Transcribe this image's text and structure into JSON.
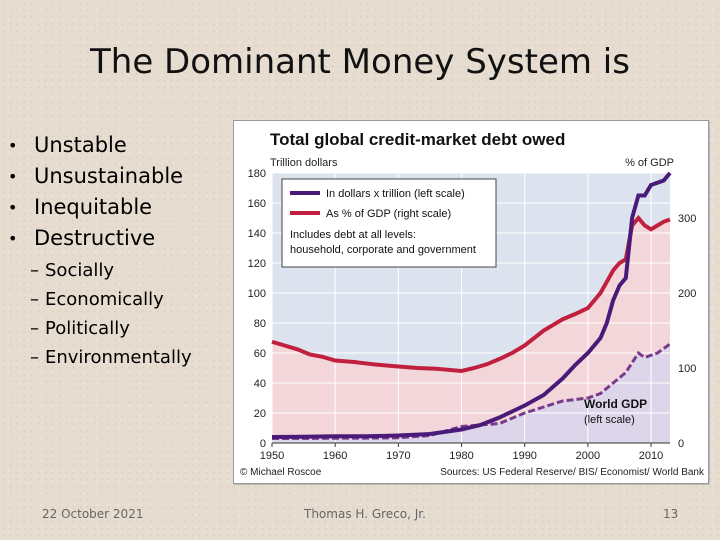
{
  "slide": {
    "title": "The Dominant Money System is",
    "bullets": [
      "Unstable",
      "Unsustainable",
      "Inequitable",
      "Destructive"
    ],
    "sub_bullets": [
      "Socially",
      "Economically",
      "Politically",
      "Environmentally"
    ],
    "footer": {
      "date": "22 October 2021",
      "author": "Thomas H. Greco, Jr.",
      "page": "13"
    }
  },
  "chart_data": {
    "type": "line",
    "title": "Total global credit-market debt owed",
    "left_axis_label": "Trillion dollars",
    "right_axis_label": "% of GDP",
    "left_ticks": [
      "0",
      "20",
      "40",
      "60",
      "80",
      "100",
      "120",
      "140",
      "160",
      "180"
    ],
    "right_ticks": [
      "0",
      "100",
      "200",
      "300"
    ],
    "x_ticks": [
      "1950",
      "1960",
      "1970",
      "1980",
      "1990",
      "2000",
      "2010"
    ],
    "xlim": [
      1950,
      2013
    ],
    "ylim_left": [
      0,
      180
    ],
    "ylim_right": [
      0,
      360
    ],
    "legend": {
      "entries": [
        "In dollars x trillion (left scale)",
        "As % of GDP (right scale)"
      ],
      "note_lines": [
        "Includes debt at all levels:",
        "household, corporate and government"
      ],
      "placement": "top-left"
    },
    "gdp_label": [
      "World GDP",
      "(left scale)"
    ],
    "credit": "© Michael Roscoe",
    "sources": "Sources: US Federal Reserve/ BIS/ Economist/ World Bank",
    "colors": {
      "debt": "#4a1a78",
      "pct": "#c0203e",
      "gdp": "#7a3a8a",
      "band": "#dde3ee",
      "pct_fill": "#f3d6da",
      "gdp_fill": "#ddd5ea"
    },
    "series": [
      {
        "name": "In dollars x trillion (left scale)",
        "axis": "left",
        "x": [
          1950,
          1955,
          1960,
          1965,
          1970,
          1975,
          1980,
          1983,
          1986,
          1990,
          1993,
          1996,
          1998,
          2000,
          2002,
          2003,
          2004,
          2005,
          2006,
          2007,
          2008,
          2009,
          2010,
          2012,
          2013
        ],
        "values": [
          4,
          4.2,
          4.5,
          4.5,
          5,
          6,
          9,
          12,
          17,
          25,
          32,
          43,
          52,
          60,
          70,
          80,
          95,
          105,
          110,
          150,
          165,
          165,
          172,
          175,
          180
        ]
      },
      {
        "name": "As % of GDP (right scale)",
        "axis": "right",
        "x": [
          1950,
          1952,
          1954,
          1956,
          1958,
          1960,
          1963,
          1966,
          1970,
          1973,
          1976,
          1980,
          1982,
          1984,
          1986,
          1988,
          1990,
          1993,
          1996,
          1998,
          2000,
          2001,
          2002,
          2003,
          2004,
          2005,
          2006,
          2007,
          2008,
          2009,
          2010,
          2011,
          2012,
          2013
        ],
        "values": [
          135,
          130,
          125,
          118,
          115,
          110,
          108,
          105,
          102,
          100,
          99,
          96,
          100,
          105,
          112,
          120,
          130,
          150,
          165,
          172,
          180,
          190,
          200,
          215,
          230,
          240,
          245,
          290,
          300,
          290,
          285,
          290,
          295,
          298
        ]
      },
      {
        "name": "World GDP",
        "axis": "left",
        "x": [
          1950,
          1955,
          1960,
          1965,
          1970,
          1975,
          1980,
          1983,
          1986,
          1990,
          1993,
          1996,
          2000,
          2002,
          2004,
          2006,
          2008,
          2009,
          2011,
          2013
        ],
        "values": [
          3,
          3.1,
          3.2,
          3.3,
          3.5,
          5,
          11,
          12,
          13,
          20,
          24,
          28,
          30,
          33,
          40,
          47,
          60,
          57,
          60,
          66
        ]
      }
    ]
  }
}
